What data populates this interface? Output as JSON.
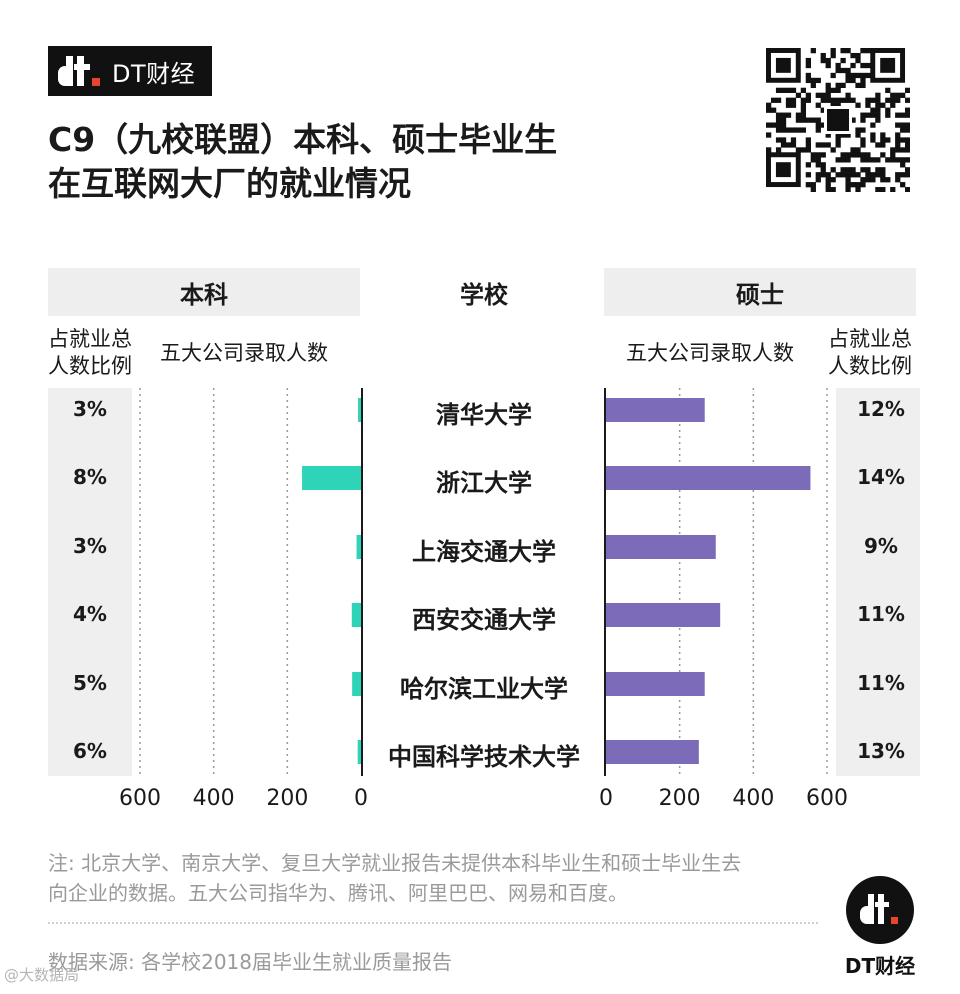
{
  "brand": {
    "logo_text": "DT财经",
    "footer_label": "DT财经",
    "logo_mark_icon": "dt-logo-icon",
    "qr_icon": "qr-code-icon",
    "watermark": "@大数据局"
  },
  "title": {
    "line1": "C9（九校联盟）本科、硕士毕业生",
    "line2": "在互联网大厂的就业情况"
  },
  "headers": {
    "left": "本科",
    "middle": "学校",
    "right": "硕士"
  },
  "column_labels": {
    "left_ratio_line1": "占就业总",
    "left_ratio_line2": "人数比例",
    "left_count": "五大公司录取人数",
    "right_count": "五大公司录取人数",
    "right_ratio_line1": "占就业总",
    "right_ratio_line2": "人数比例"
  },
  "colors": {
    "undergrad_bar": "#2dd4b8",
    "master_bar": "#7b6bb8",
    "panel_bg": "#efefef",
    "note_text": "#9a9a9a"
  },
  "chart_data": {
    "type": "bar",
    "orientation": "horizontal-butterfly",
    "categories": [
      "清华大学",
      "浙江大学",
      "上海交通大学",
      "西安交通大学",
      "哈尔滨工业大学",
      "中国科学技术大学"
    ],
    "series": [
      {
        "name": "本科",
        "values": [
          8,
          160,
          12,
          25,
          24,
          9
        ],
        "ratio_labels": [
          "3%",
          "8%",
          "3%",
          "4%",
          "5%",
          "6%"
        ]
      },
      {
        "name": "硕士",
        "values": [
          268,
          555,
          298,
          310,
          268,
          252
        ],
        "ratio_labels": [
          "12%",
          "14%",
          "9%",
          "11%",
          "11%",
          "13%"
        ]
      }
    ],
    "xlim": [
      0,
      600
    ],
    "left_ticks": [
      "600",
      "400",
      "200",
      "0"
    ],
    "right_ticks": [
      "0",
      "200",
      "400",
      "600"
    ],
    "grid": "dotted vertical at 200, 400, 600"
  },
  "footer": {
    "note_line1": "注: 北京大学、南京大学、复旦大学就业报告未提供本科毕业生和硕士毕业生去",
    "note_line2": "向企业的数据。五大公司指华为、腾讯、阿里巴巴、网易和百度。",
    "source": "数据来源: 各学校2018届毕业生就业质量报告"
  }
}
